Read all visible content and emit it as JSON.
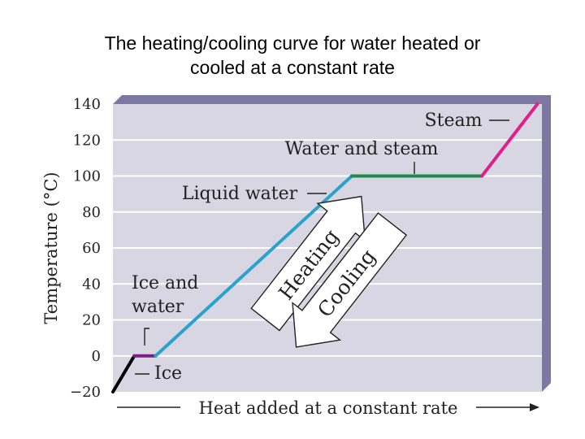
{
  "slide": {
    "title_line1": "The heating/cooling curve for water heated or",
    "title_line2": "cooled at a constant rate"
  },
  "chart_data": {
    "type": "line",
    "title": "The heating/cooling curve for water heated or cooled at a constant rate",
    "ylabel": "Temperature (°C)",
    "xlabel": "Heat added at a constant rate",
    "ylim": [
      -20,
      140
    ],
    "yticks": [
      -20,
      0,
      20,
      40,
      60,
      80,
      100,
      120,
      140
    ],
    "xlim": [
      0,
      100
    ],
    "grid": true,
    "segments": [
      {
        "phase": "Ice",
        "color": "#000000",
        "x": [
          0,
          10
        ],
        "y": [
          -20,
          0
        ]
      },
      {
        "phase": "Ice and water",
        "color": "#7a1f86",
        "x": [
          10,
          20
        ],
        "y": [
          0,
          0
        ]
      },
      {
        "phase": "Liquid water",
        "color": "#2aa3cc",
        "x": [
          20,
          112
        ],
        "y": [
          0,
          100
        ]
      },
      {
        "phase": "Water and steam",
        "color": "#1e8c4a",
        "x": [
          112,
          173
        ],
        "y": [
          100,
          100
        ]
      },
      {
        "phase": "Steam",
        "color": "#e0208a",
        "x": [
          173,
          199
        ],
        "y": [
          100,
          140
        ]
      }
    ],
    "annotations": {
      "steam": "Steam",
      "water_and_steam": "Water and steam",
      "liquid_water": "Liquid water",
      "ice_and_water_1": "Ice and",
      "ice_and_water_2": "water",
      "ice": "Ice",
      "heating": "Heating",
      "cooling": "Cooling"
    },
    "colors": {
      "plot_bg": "#d7d6e2",
      "plot_shadow": "#7b78a2",
      "grid": "#ffffff"
    }
  }
}
